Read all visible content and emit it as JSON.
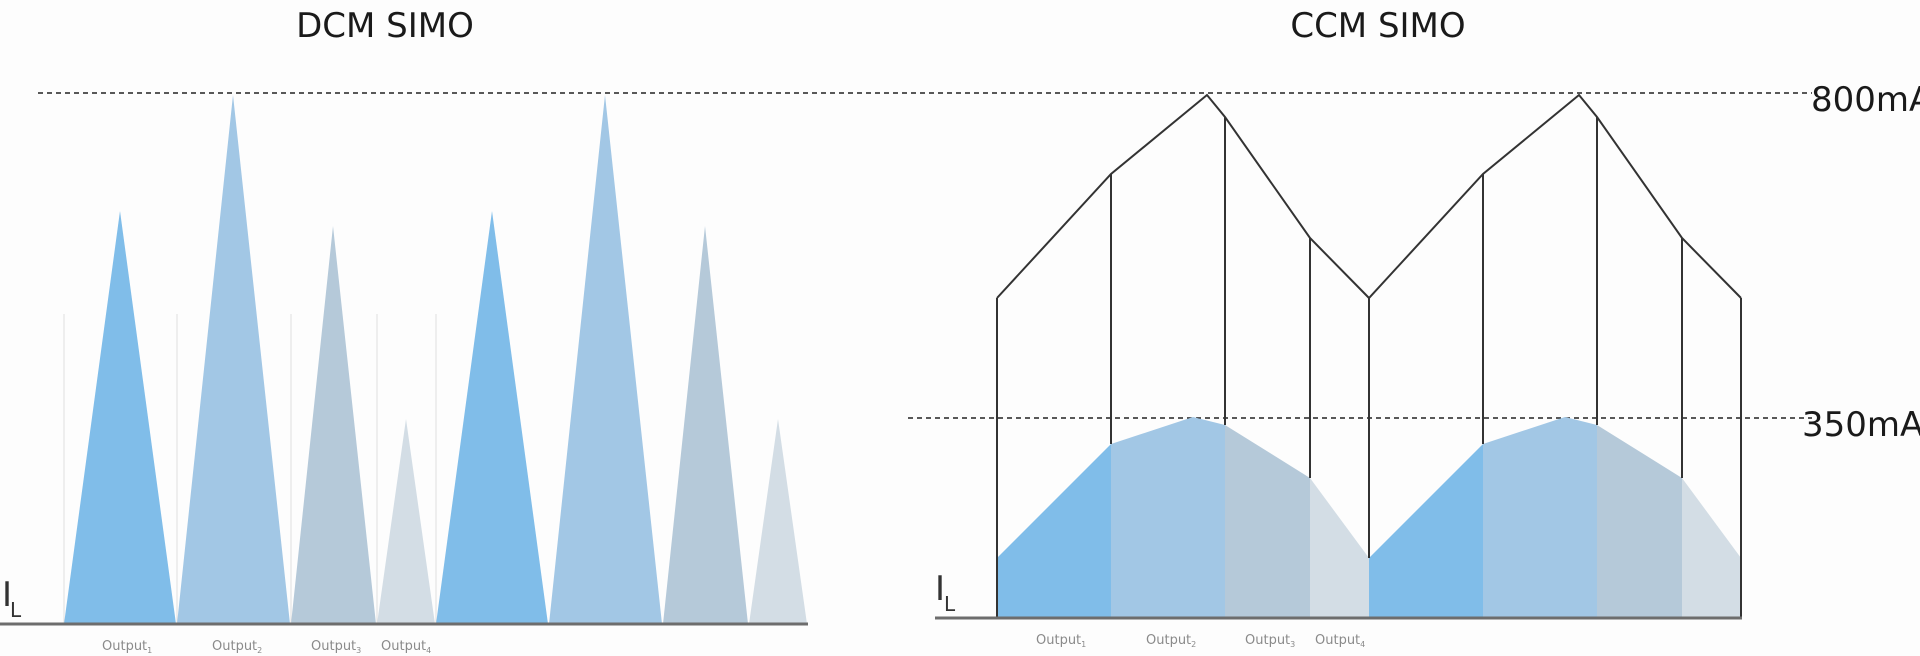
{
  "dcm": {
    "title": "DCM SIMO",
    "axis_symbol": "I",
    "axis_subscript": "L",
    "outputs": [
      {
        "label": "Output",
        "sub": "1"
      },
      {
        "label": "Output",
        "sub": "2"
      },
      {
        "label": "Output",
        "sub": "3"
      },
      {
        "label": "Output",
        "sub": "4"
      }
    ]
  },
  "ccm": {
    "title": "CCM SIMO",
    "axis_symbol": "I",
    "axis_subscript": "L",
    "outputs": [
      {
        "label": "Output",
        "sub": "1"
      },
      {
        "label": "Output",
        "sub": "2"
      },
      {
        "label": "Output",
        "sub": "3"
      },
      {
        "label": "Output",
        "sub": "4"
      }
    ]
  },
  "levels": {
    "high": "800mA",
    "low": "350mA"
  },
  "colors": {
    "output1": "#80bde9",
    "output2": "#a2c7e5",
    "output3": "#b5c9d9",
    "output4": "#d3dde5",
    "envelope": "#333333",
    "baseline": "#6d6d6d"
  }
}
